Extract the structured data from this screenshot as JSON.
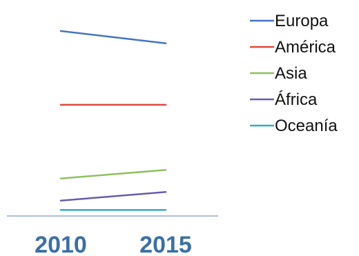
{
  "chart_data": {
    "type": "line",
    "x": [
      "2010",
      "2015"
    ],
    "series": [
      {
        "name": "Europa",
        "color": "#4472C4",
        "values": [
          730,
          680
        ]
      },
      {
        "name": "América",
        "color": "#E0473C",
        "values": [
          430,
          430
        ]
      },
      {
        "name": "Asia",
        "color": "#8DC05B",
        "values": [
          130,
          165
        ]
      },
      {
        "name": "África",
        "color": "#6A5AAE",
        "values": [
          40,
          75
        ]
      },
      {
        "name": "Oceanía",
        "color": "#33AACC",
        "values": [
          2,
          2
        ]
      }
    ],
    "title": "",
    "xlabel": "",
    "ylabel": "",
    "ylim": [
      0,
      800
    ],
    "grid": false,
    "legend_position": "right",
    "tick_label_color": "#3A6FA8",
    "axis_color": "#8FA8C8"
  }
}
